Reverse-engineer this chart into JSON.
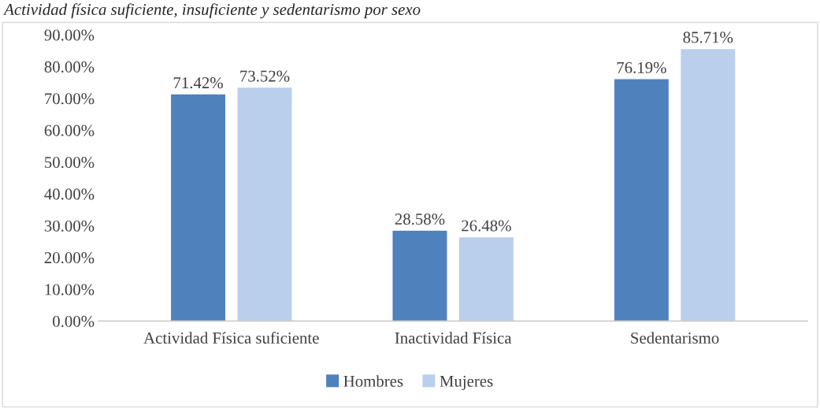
{
  "chart_data": {
    "type": "bar",
    "title": "Actividad física suficiente, insuficiente y sedentarismo por sexo",
    "categories": [
      "Actividad Física suficiente",
      "Inactividad Física",
      "Sedentarismo"
    ],
    "series": [
      {
        "name": "Hombres",
        "color": "#4f81bd",
        "values": [
          71.42,
          28.58,
          76.19
        ]
      },
      {
        "name": "Mujeres",
        "color": "#b9cfec",
        "values": [
          73.52,
          26.48,
          85.71
        ]
      }
    ],
    "ylim": [
      0,
      90
    ],
    "yticks": [
      {
        "value": 0,
        "label": "0.00%"
      },
      {
        "value": 10,
        "label": "10.00%"
      },
      {
        "value": 20,
        "label": "20.00%"
      },
      {
        "value": 30,
        "label": "30.00%"
      },
      {
        "value": 40,
        "label": "40.00%"
      },
      {
        "value": 50,
        "label": "50.00%"
      },
      {
        "value": 60,
        "label": "60.00%"
      },
      {
        "value": 70,
        "label": "70.00%"
      },
      {
        "value": 80,
        "label": "80.00%"
      },
      {
        "value": 90,
        "label": "90.00%"
      }
    ],
    "value_labels": [
      [
        "71.42%",
        "28.58%",
        "76.19%"
      ],
      [
        "73.52%",
        "26.48%",
        "85.71%"
      ]
    ],
    "legend": "bottom",
    "grid": false
  }
}
